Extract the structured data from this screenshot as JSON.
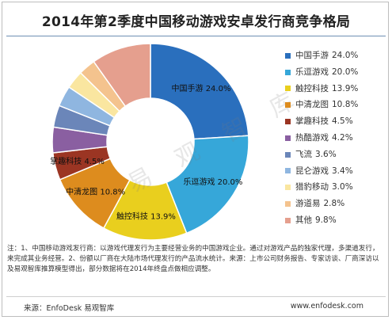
{
  "title": "2014年第2季度中国移动游戏安卓发行商竞争格局",
  "watermark": "易 观 智 库",
  "chart_data": {
    "type": "pie",
    "donut": true,
    "title": "2014年第2季度中国移动游戏安卓发行商竞争格局",
    "unit": "%",
    "legend_position": "right",
    "slices": [
      {
        "name": "中国手游",
        "value": 24.0,
        "label": "24.0%",
        "color": "#2a6fbd",
        "slice_label": true
      },
      {
        "name": "乐逗游戏",
        "value": 20.0,
        "label": "20.0%",
        "color": "#36a7d9",
        "slice_label": true
      },
      {
        "name": "触控科技",
        "value": 13.9,
        "label": "13.9%",
        "color": "#e9cf1e",
        "slice_label": true
      },
      {
        "name": "中清龙图",
        "value": 10.8,
        "label": "10.8%",
        "color": "#dd8c1e",
        "slice_label": true
      },
      {
        "name": "掌趣科技",
        "value": 4.5,
        "label": "4.5%",
        "color": "#9b3523",
        "slice_label": true
      },
      {
        "name": "热酷游戏",
        "value": 4.2,
        "label": "4.2%",
        "color": "#8a5fa1",
        "slice_label": false
      },
      {
        "name": "飞流",
        "value": 3.6,
        "label": "3.6%",
        "color": "#6b86b9",
        "slice_label": false
      },
      {
        "name": "昆仑游戏",
        "value": 3.4,
        "label": "3.4%",
        "color": "#8fb6e0",
        "slice_label": false
      },
      {
        "name": "猎豹移动",
        "value": 3.0,
        "label": "3.0%",
        "color": "#fae6a0",
        "slice_label": false
      },
      {
        "name": "游道易",
        "value": 2.8,
        "label": "2.8%",
        "color": "#f4c38e",
        "slice_label": false
      },
      {
        "name": "其他",
        "value": 9.8,
        "label": "9.8%",
        "color": "#e59f8e",
        "slice_label": false
      }
    ]
  },
  "notes": "注：1、中国移动游戏发行商：以游戏代理发行为主要经营业务的中国游戏企业。通过对游戏产品的独家代理，多渠道发行，来完成其业务经营。2、份额以厂商在大陆市场代理发行的产品流水统计。来源：上市公司财务报告、专家访谈、厂商深访以及易观智库推算模型得出，部分数据将在2014年终盘点做相应调整。",
  "source": "来源：EnfoDesk 易观智库",
  "website": "www.enfodesk.com"
}
